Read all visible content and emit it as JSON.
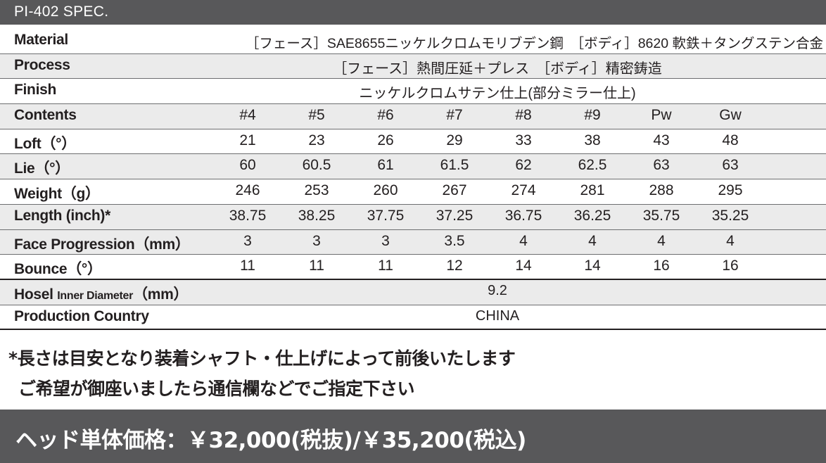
{
  "title": "PI-402 SPEC.",
  "material": {
    "label": "Material",
    "value": "［フェース］SAE8655ニッケルクロムモリブデン鋼　［ボディ］8620 軟鉄＋タングステン合金"
  },
  "process": {
    "label": "Process",
    "value": "［フェース］熱間圧延＋プレス　［ボディ］精密鋳造"
  },
  "finish": {
    "label": "Finish",
    "value": "ニッケルクロムサテン仕上(部分ミラー仕上)"
  },
  "rows": [
    {
      "label": "Contents",
      "values": [
        "#4",
        "#5",
        "#6",
        "#7",
        "#8",
        "#9",
        "Pw",
        "Gw"
      ]
    },
    {
      "label": "Loft（°）",
      "values": [
        "21",
        "23",
        "26",
        "29",
        "33",
        "38",
        "43",
        "48"
      ]
    },
    {
      "label": "Lie（°）",
      "values": [
        "60",
        "60.5",
        "61",
        "61.5",
        "62",
        "62.5",
        "63",
        "63"
      ]
    },
    {
      "label": "Weight（g）",
      "values": [
        "246",
        "253",
        "260",
        "267",
        "274",
        "281",
        "288",
        "295"
      ]
    },
    {
      "label": "Length (inch)*",
      "values": [
        "38.75",
        "38.25",
        "37.75",
        "37.25",
        "36.75",
        "36.25",
        "35.75",
        "35.25"
      ]
    },
    {
      "label": "Face Progression（mm）",
      "values": [
        "3",
        "3",
        "3",
        "3.5",
        "4",
        "4",
        "4",
        "4"
      ]
    },
    {
      "label": "Bounce（°）",
      "values": [
        "11",
        "11",
        "11",
        "12",
        "14",
        "14",
        "16",
        "16"
      ]
    }
  ],
  "hosel": {
    "label_main": "Hosel",
    "label_sub": "Inner Diameter",
    "label_unit": "（mm）",
    "value": "9.2"
  },
  "country": {
    "label": "Production Country",
    "value": "CHINA"
  },
  "notes": [
    "*長さは目安となり装着シャフト・仕上げによって前後いたします",
    "ご希望が御座いましたら通信欄などでご指定下さい"
  ],
  "price": "ヘッド単体価格：￥32,000(税抜)/￥35,200(税込)",
  "colors": {
    "bar": "#58585a",
    "row_alt": "#ebebeb",
    "text": "#231f20"
  }
}
